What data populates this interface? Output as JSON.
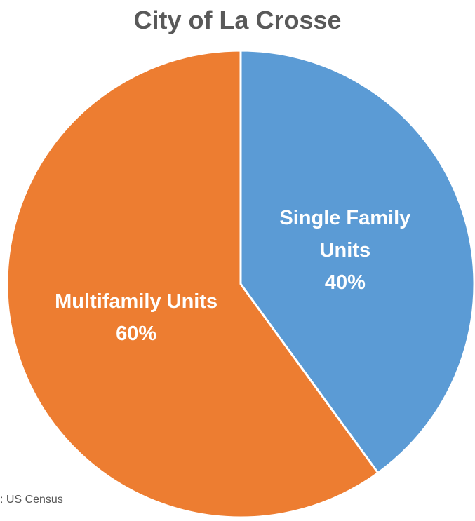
{
  "chart_data": {
    "type": "pie",
    "title": "City of La Crosse",
    "source": ": US Census",
    "categories": [
      "Single Family Units",
      "Multifamily Units"
    ],
    "values": [
      40,
      60
    ],
    "value_labels": [
      "40%",
      "60%"
    ],
    "colors": [
      "#5b9bd5",
      "#ed7d31"
    ]
  }
}
